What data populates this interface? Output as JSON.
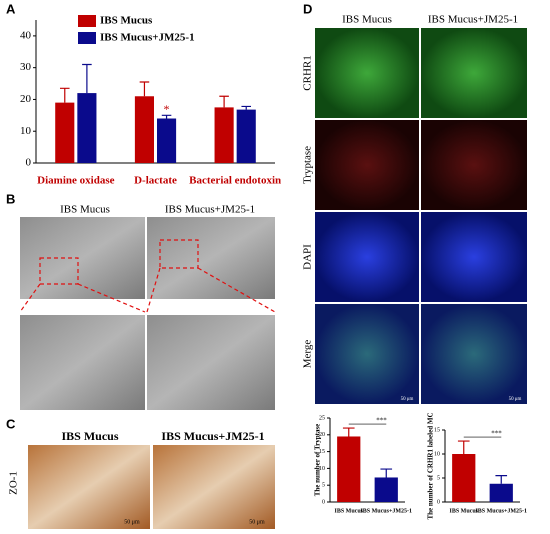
{
  "chart_data": [
    {
      "type": "bar",
      "panel": "A",
      "categories": [
        "Diamine oxidase",
        "D-lactate",
        "Bacterial endotoxin"
      ],
      "series": [
        {
          "name": "IBS Mucus",
          "color": "#c00000",
          "values": [
            19,
            21,
            17.5
          ],
          "errors": [
            4.5,
            4.5,
            3.5
          ]
        },
        {
          "name": "IBS Mucus+JM25-1",
          "color": "#0a0a8c",
          "values": [
            22,
            14,
            16.8
          ],
          "errors": [
            9,
            1,
            1
          ]
        }
      ],
      "annotation": "*",
      "ylim": [
        0,
        45
      ],
      "yticks": [
        0,
        10,
        20,
        30,
        40
      ],
      "grid": false
    },
    {
      "type": "bar",
      "y_label": "The number of Tryptase",
      "categories": [
        "IBS Mucus",
        "IBS Mucus+JM25-1"
      ],
      "values": [
        19.5,
        7.3
      ],
      "errors": [
        2.5,
        2.5
      ],
      "colors": [
        "#c00000",
        "#0a0a8c"
      ],
      "annotation": "***",
      "ylim": [
        0,
        25
      ],
      "yticks": [
        0,
        5,
        10,
        15,
        20,
        25
      ],
      "grid": false
    },
    {
      "type": "bar",
      "y_label": "The number of CRHR1 labeled MC",
      "categories": [
        "IBS Mucus",
        "IBS Mucus+JM25-1"
      ],
      "values": [
        10,
        3.8
      ],
      "errors": [
        2.7,
        1.7
      ],
      "colors": [
        "#c00000",
        "#0a0a8c"
      ],
      "annotation": "***",
      "ylim": [
        0,
        15
      ],
      "yticks": [
        0,
        5,
        10,
        15
      ],
      "grid": false
    }
  ],
  "figure": {
    "B": {
      "label": "B",
      "columns": [
        "IBS Mucus",
        "IBS Mucus+JM25-1"
      ]
    },
    "C": {
      "label": "C",
      "columns": [
        "IBS Mucus",
        "IBS Mucus+JM25-1"
      ],
      "row_label": "ZO-1",
      "scale_bar": "50 μm"
    },
    "D": {
      "label": "D",
      "columns": [
        "IBS Mucus",
        "IBS Mucus+JM25-1"
      ],
      "rows": [
        "CRHR1",
        "Tryptase",
        "DAPI",
        "Merge"
      ],
      "scale_bar": "50 μm"
    }
  }
}
